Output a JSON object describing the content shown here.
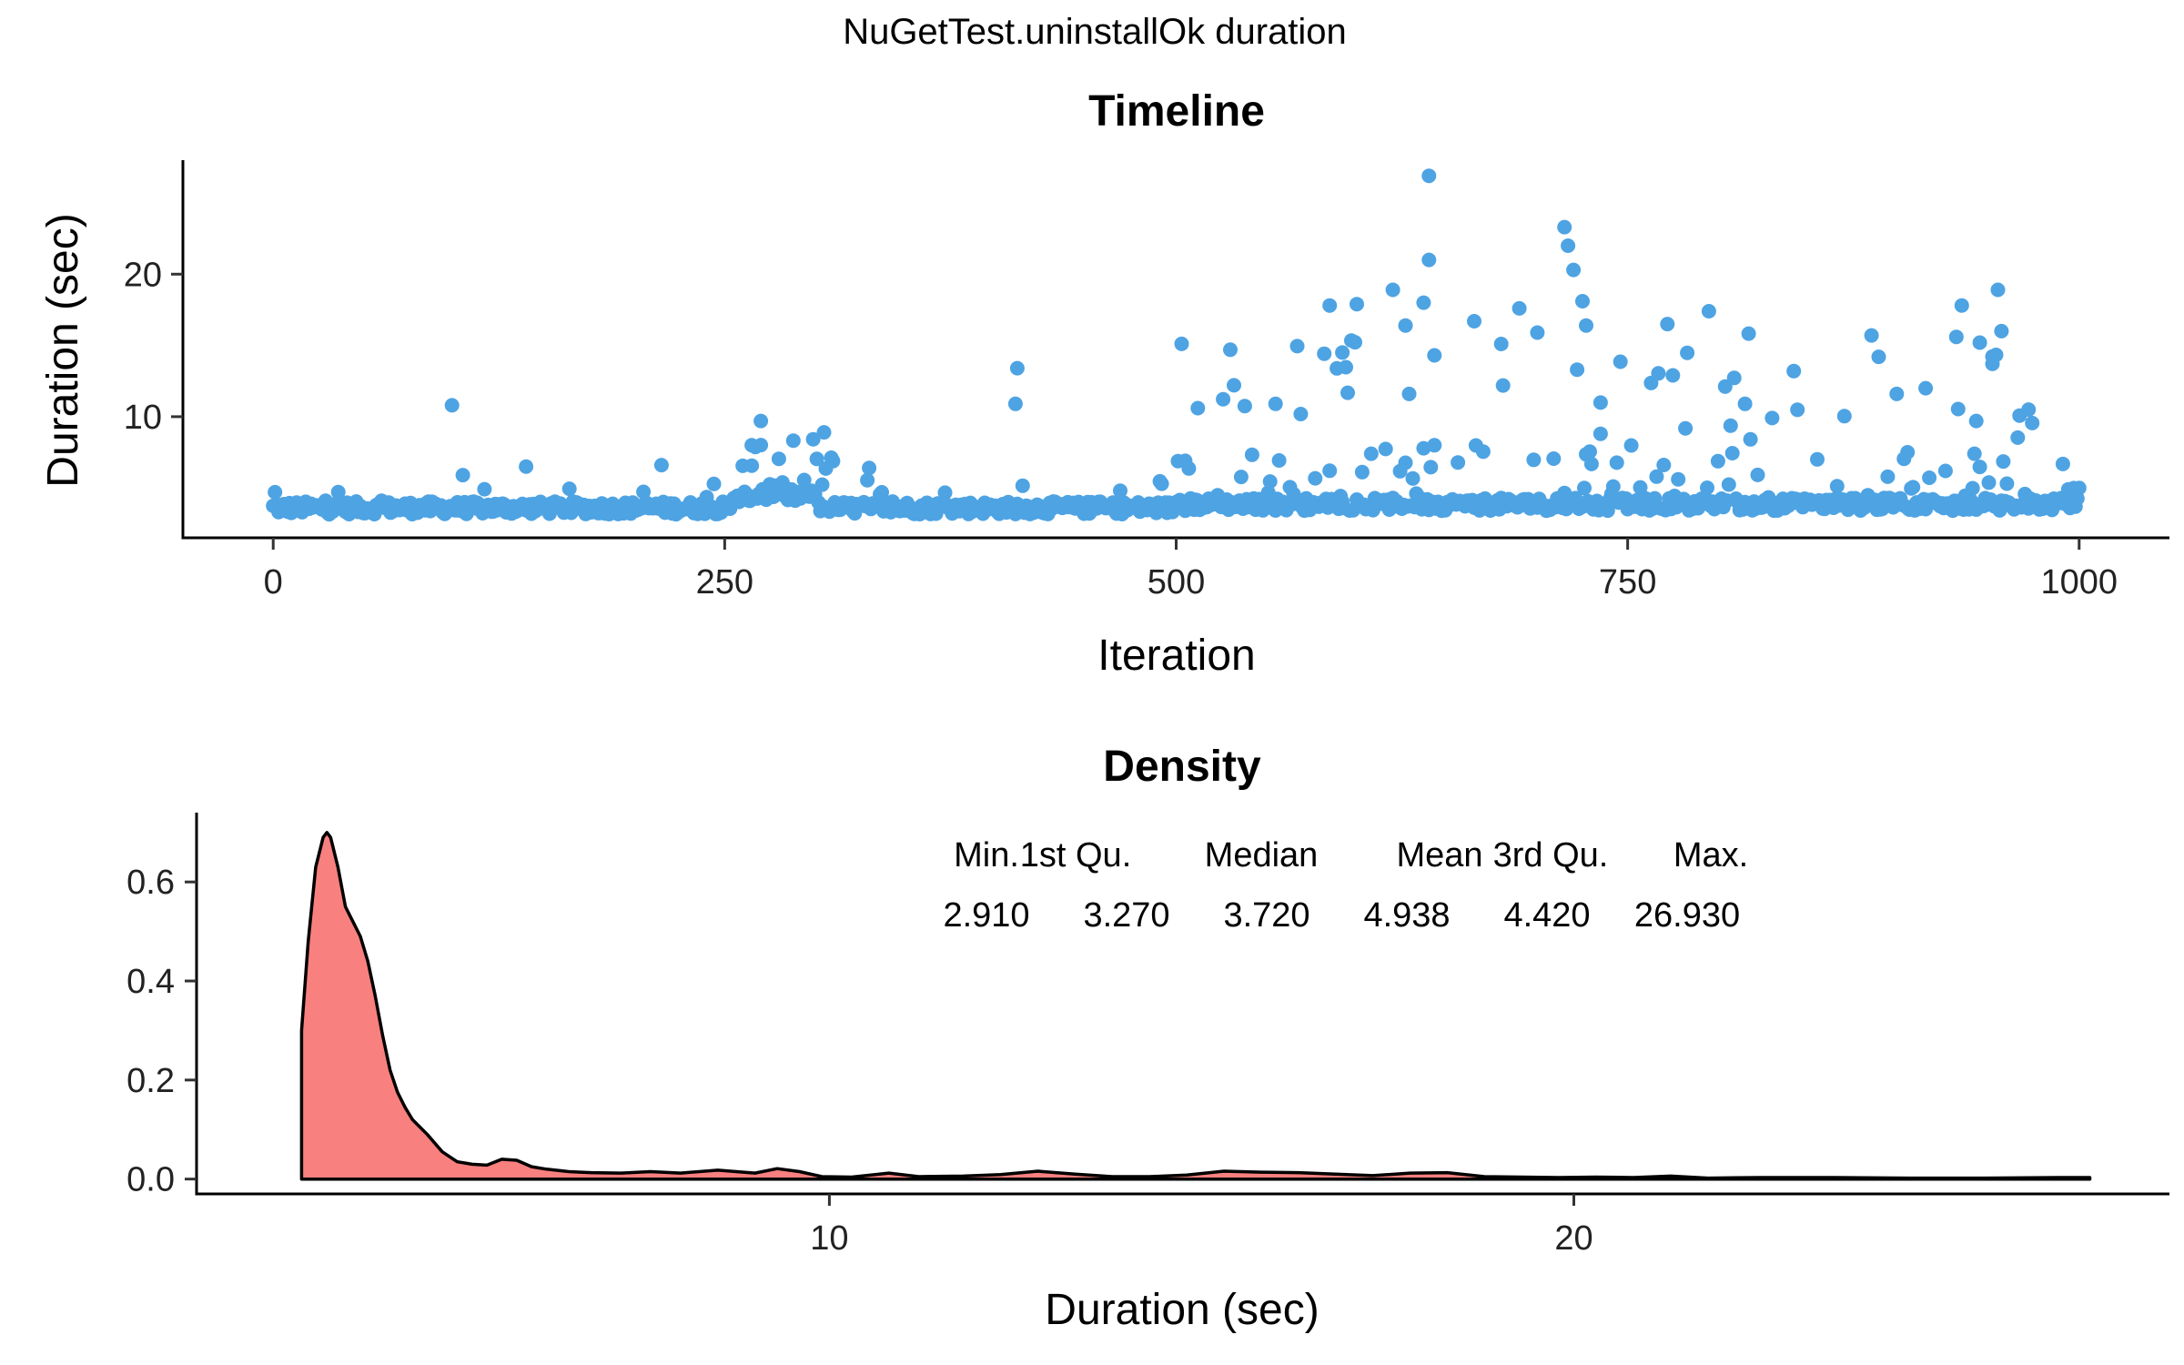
{
  "figure": {
    "title": "NuGetTest.uninstallOk duration"
  },
  "chart_data": [
    {
      "type": "scatter",
      "title": "Timeline",
      "xlabel": "Iteration",
      "ylabel": "Duration (sec)",
      "xlim": [
        -50,
        1050
      ],
      "ylim": [
        1.5,
        28
      ],
      "x_ticks": [
        0,
        250,
        500,
        750,
        1000
      ],
      "y_ticks": [
        10,
        20
      ],
      "grid": false,
      "point_color": "#4EA3E3",
      "n_points": 1000,
      "notable_points": [
        {
          "x": 1,
          "y": 4.7
        },
        {
          "x": 99,
          "y": 10.8
        },
        {
          "x": 105,
          "y": 5.9
        },
        {
          "x": 140,
          "y": 6.5
        },
        {
          "x": 215,
          "y": 6.6
        },
        {
          "x": 270,
          "y": 9.7
        },
        {
          "x": 265,
          "y": 8.0
        },
        {
          "x": 305,
          "y": 8.9
        },
        {
          "x": 330,
          "y": 6.4
        },
        {
          "x": 412,
          "y": 13.4
        },
        {
          "x": 411,
          "y": 10.9
        },
        {
          "x": 505,
          "y": 6.9
        },
        {
          "x": 512,
          "y": 10.6
        },
        {
          "x": 530,
          "y": 14.7
        },
        {
          "x": 532,
          "y": 12.2
        },
        {
          "x": 555,
          "y": 10.9
        },
        {
          "x": 585,
          "y": 17.8
        },
        {
          "x": 592,
          "y": 14.5
        },
        {
          "x": 600,
          "y": 17.9
        },
        {
          "x": 620,
          "y": 18.9
        },
        {
          "x": 627,
          "y": 16.4
        },
        {
          "x": 637,
          "y": 18.0
        },
        {
          "x": 640,
          "y": 26.9
        },
        {
          "x": 640,
          "y": 21.0
        },
        {
          "x": 643,
          "y": 14.3
        },
        {
          "x": 665,
          "y": 16.7
        },
        {
          "x": 680,
          "y": 15.1
        },
        {
          "x": 690,
          "y": 17.6
        },
        {
          "x": 700,
          "y": 15.9
        },
        {
          "x": 715,
          "y": 23.3
        },
        {
          "x": 717,
          "y": 22.0
        },
        {
          "x": 720,
          "y": 20.3
        },
        {
          "x": 725,
          "y": 18.1
        },
        {
          "x": 727,
          "y": 16.4
        },
        {
          "x": 722,
          "y": 13.3
        },
        {
          "x": 735,
          "y": 8.8
        },
        {
          "x": 772,
          "y": 16.5
        },
        {
          "x": 775,
          "y": 12.9
        },
        {
          "x": 795,
          "y": 17.4
        },
        {
          "x": 815,
          "y": 10.9
        },
        {
          "x": 842,
          "y": 13.2
        },
        {
          "x": 885,
          "y": 15.7
        },
        {
          "x": 889,
          "y": 14.2
        },
        {
          "x": 905,
          "y": 7.5
        },
        {
          "x": 915,
          "y": 12.0
        },
        {
          "x": 932,
          "y": 15.6
        },
        {
          "x": 935,
          "y": 17.8
        },
        {
          "x": 942,
          "y": 7.4
        },
        {
          "x": 943,
          "y": 9.7
        },
        {
          "x": 945,
          "y": 15.2
        },
        {
          "x": 955,
          "y": 18.9
        },
        {
          "x": 957,
          "y": 16.0
        },
        {
          "x": 952,
          "y": 13.7
        },
        {
          "x": 960,
          "y": 5.3
        },
        {
          "x": 972,
          "y": 10.5
        },
        {
          "x": 1000,
          "y": 5.0
        }
      ]
    },
    {
      "type": "area",
      "title": "Density",
      "xlabel": "Duration (sec)",
      "ylabel": "",
      "xlim": [
        1.5,
        28
      ],
      "ylim": [
        -0.03,
        0.74
      ],
      "x_ticks": [
        10,
        20
      ],
      "y_ticks": [
        0.0,
        0.2,
        0.4,
        0.6
      ],
      "y_tick_labels": [
        "0.0",
        "0.2",
        "0.4",
        "0.6"
      ],
      "grid": false,
      "fill_color": "#F8807E",
      "line_color": "#000000",
      "curve": {
        "x": [
          2.91,
          3.0,
          3.1,
          3.2,
          3.25,
          3.3,
          3.4,
          3.5,
          3.6,
          3.7,
          3.8,
          3.9,
          4.0,
          4.1,
          4.2,
          4.3,
          4.4,
          4.6,
          4.8,
          5.0,
          5.2,
          5.4,
          5.6,
          5.8,
          6.0,
          6.2,
          6.5,
          6.8,
          7.2,
          7.6,
          8.0,
          8.5,
          9.0,
          9.3,
          9.6,
          9.9,
          10.3,
          10.8,
          11.2,
          11.8,
          12.3,
          12.8,
          13.3,
          13.8,
          14.3,
          14.8,
          15.3,
          15.8,
          16.3,
          16.8,
          17.3,
          17.8,
          18.3,
          18.8,
          19.3,
          19.8,
          20.3,
          20.8,
          21.3,
          21.8,
          22.5,
          23.5,
          24.5,
          25.5,
          26.5,
          26.93
        ],
        "y": [
          0.3,
          0.48,
          0.63,
          0.69,
          0.7,
          0.69,
          0.63,
          0.55,
          0.52,
          0.49,
          0.44,
          0.37,
          0.29,
          0.22,
          0.175,
          0.145,
          0.12,
          0.09,
          0.055,
          0.035,
          0.03,
          0.028,
          0.04,
          0.038,
          0.025,
          0.02,
          0.015,
          0.013,
          0.012,
          0.015,
          0.012,
          0.018,
          0.012,
          0.021,
          0.015,
          0.005,
          0.004,
          0.012,
          0.005,
          0.006,
          0.009,
          0.016,
          0.01,
          0.005,
          0.005,
          0.008,
          0.016,
          0.014,
          0.013,
          0.01,
          0.007,
          0.012,
          0.013,
          0.005,
          0.004,
          0.003,
          0.004,
          0.003,
          0.006,
          0.002,
          0.003,
          0.003,
          0.002,
          0.002,
          0.003,
          0.003
        ]
      },
      "summary_table": {
        "headers": [
          "Min.",
          "1st Qu.",
          "Median",
          "Mean",
          "3rd Qu.",
          "Max."
        ],
        "values": [
          "2.910",
          "3.270",
          "3.720",
          "4.938",
          "4.420",
          "26.930"
        ]
      }
    }
  ]
}
